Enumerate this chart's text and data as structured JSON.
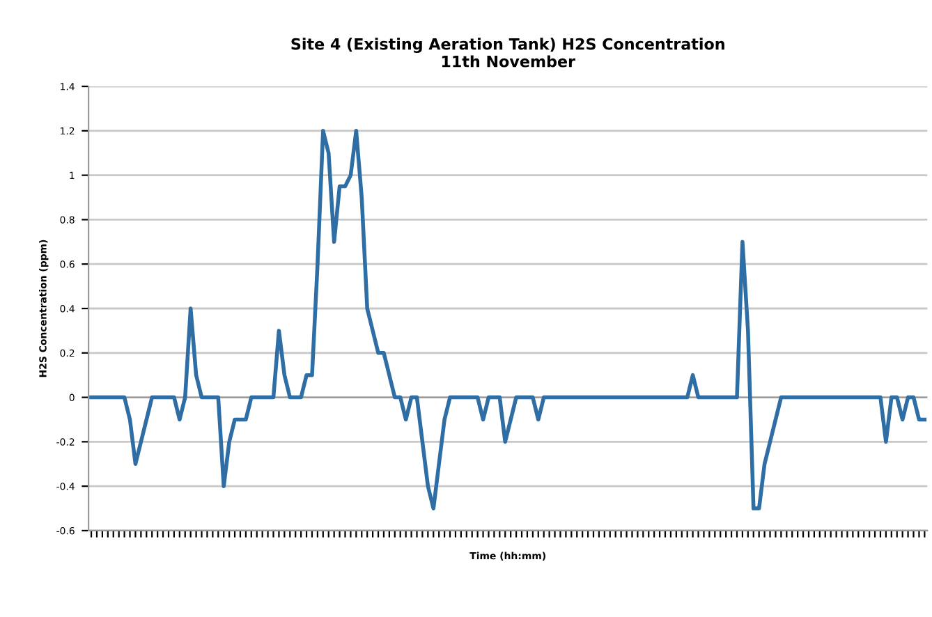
{
  "chart_data": {
    "type": "line",
    "title": "Site 4 (Existing Aeration Tank) H2S Concentration\n11th November",
    "xlabel": "Time (hh:mm)",
    "ylabel": "H2S Concentration (ppm)",
    "categories": [
      null,
      null,
      null,
      null,
      null,
      null,
      null,
      null,
      null,
      null,
      null,
      null,
      null,
      null,
      null,
      null,
      null,
      null,
      null,
      null,
      null,
      null,
      null,
      null,
      null,
      null,
      null,
      null,
      null,
      null,
      null,
      null,
      null,
      null,
      null,
      null,
      null,
      null,
      null,
      null,
      null,
      null,
      null,
      null,
      null,
      null,
      null,
      null,
      null,
      null,
      null,
      null,
      null,
      null,
      null,
      null,
      null,
      null,
      null,
      null,
      null,
      null,
      null,
      null,
      null,
      null,
      null,
      null,
      null,
      null,
      null,
      null,
      null,
      null,
      null,
      null,
      null,
      null,
      null,
      null,
      null,
      null,
      null,
      null,
      null,
      null,
      null,
      null,
      null,
      null,
      null,
      null,
      null,
      null,
      null,
      null,
      null,
      null,
      null,
      null,
      null,
      null,
      null,
      null,
      null,
      null,
      null,
      null,
      null,
      null,
      null,
      null,
      null,
      null,
      null,
      null,
      null,
      null,
      null,
      null,
      null,
      null,
      null,
      null,
      null,
      null,
      null,
      null,
      null,
      null,
      null,
      null,
      null,
      null,
      null,
      null,
      null,
      null,
      null,
      null,
      null,
      null,
      null,
      null,
      null,
      null,
      null,
      null,
      null,
      null,
      null,
      null
    ],
    "series": [
      {
        "color": "#2f6ea5",
        "values": [
          0,
          0,
          0,
          0,
          0,
          0,
          0,
          -0.1,
          -0.3,
          -0.2,
          -0.1,
          0,
          0,
          0,
          0,
          0,
          -0.1,
          0,
          0.4,
          0.1,
          0,
          0,
          0,
          0,
          -0.4,
          -0.2,
          -0.1,
          -0.1,
          -0.1,
          0,
          0,
          0,
          0,
          0,
          0.3,
          0.1,
          0,
          0,
          0,
          0.1,
          0.1,
          0.6,
          1.2,
          1.1,
          0.7,
          0.95,
          0.95,
          1.0,
          1.2,
          0.9,
          0.4,
          0.3,
          0.2,
          0.2,
          0.1,
          0,
          0,
          -0.1,
          0,
          0,
          -0.2,
          -0.4,
          -0.5,
          -0.3,
          -0.1,
          0,
          0,
          0,
          0,
          0,
          0,
          -0.1,
          0,
          0,
          0,
          -0.2,
          -0.1,
          0,
          0,
          0,
          0,
          -0.1,
          0,
          0,
          0,
          0,
          0,
          0,
          0,
          0,
          0,
          0,
          0,
          0,
          0,
          0,
          0,
          0,
          0,
          0,
          0,
          0,
          0,
          0,
          0,
          0,
          0,
          0,
          0,
          0.1,
          0,
          0,
          0,
          0,
          0,
          0,
          0,
          0,
          0.7,
          0.3,
          -0.5,
          -0.5,
          -0.3,
          -0.2,
          -0.1,
          0,
          0,
          0,
          0,
          0,
          0,
          0,
          0,
          0,
          0,
          0,
          0,
          0,
          0,
          0,
          0,
          0,
          0,
          0,
          -0.2,
          0,
          0,
          -0.1,
          0,
          0,
          -0.1,
          -0.1
        ]
      }
    ],
    "ylim": [
      -0.6,
      1.4
    ],
    "yticks": [
      -0.6,
      -0.4,
      -0.2,
      0,
      0.2,
      0.4,
      0.6,
      0.8,
      1,
      1.2,
      1.4
    ],
    "grid": "y",
    "legend": false,
    "marker": "none",
    "line_style": "solid"
  }
}
